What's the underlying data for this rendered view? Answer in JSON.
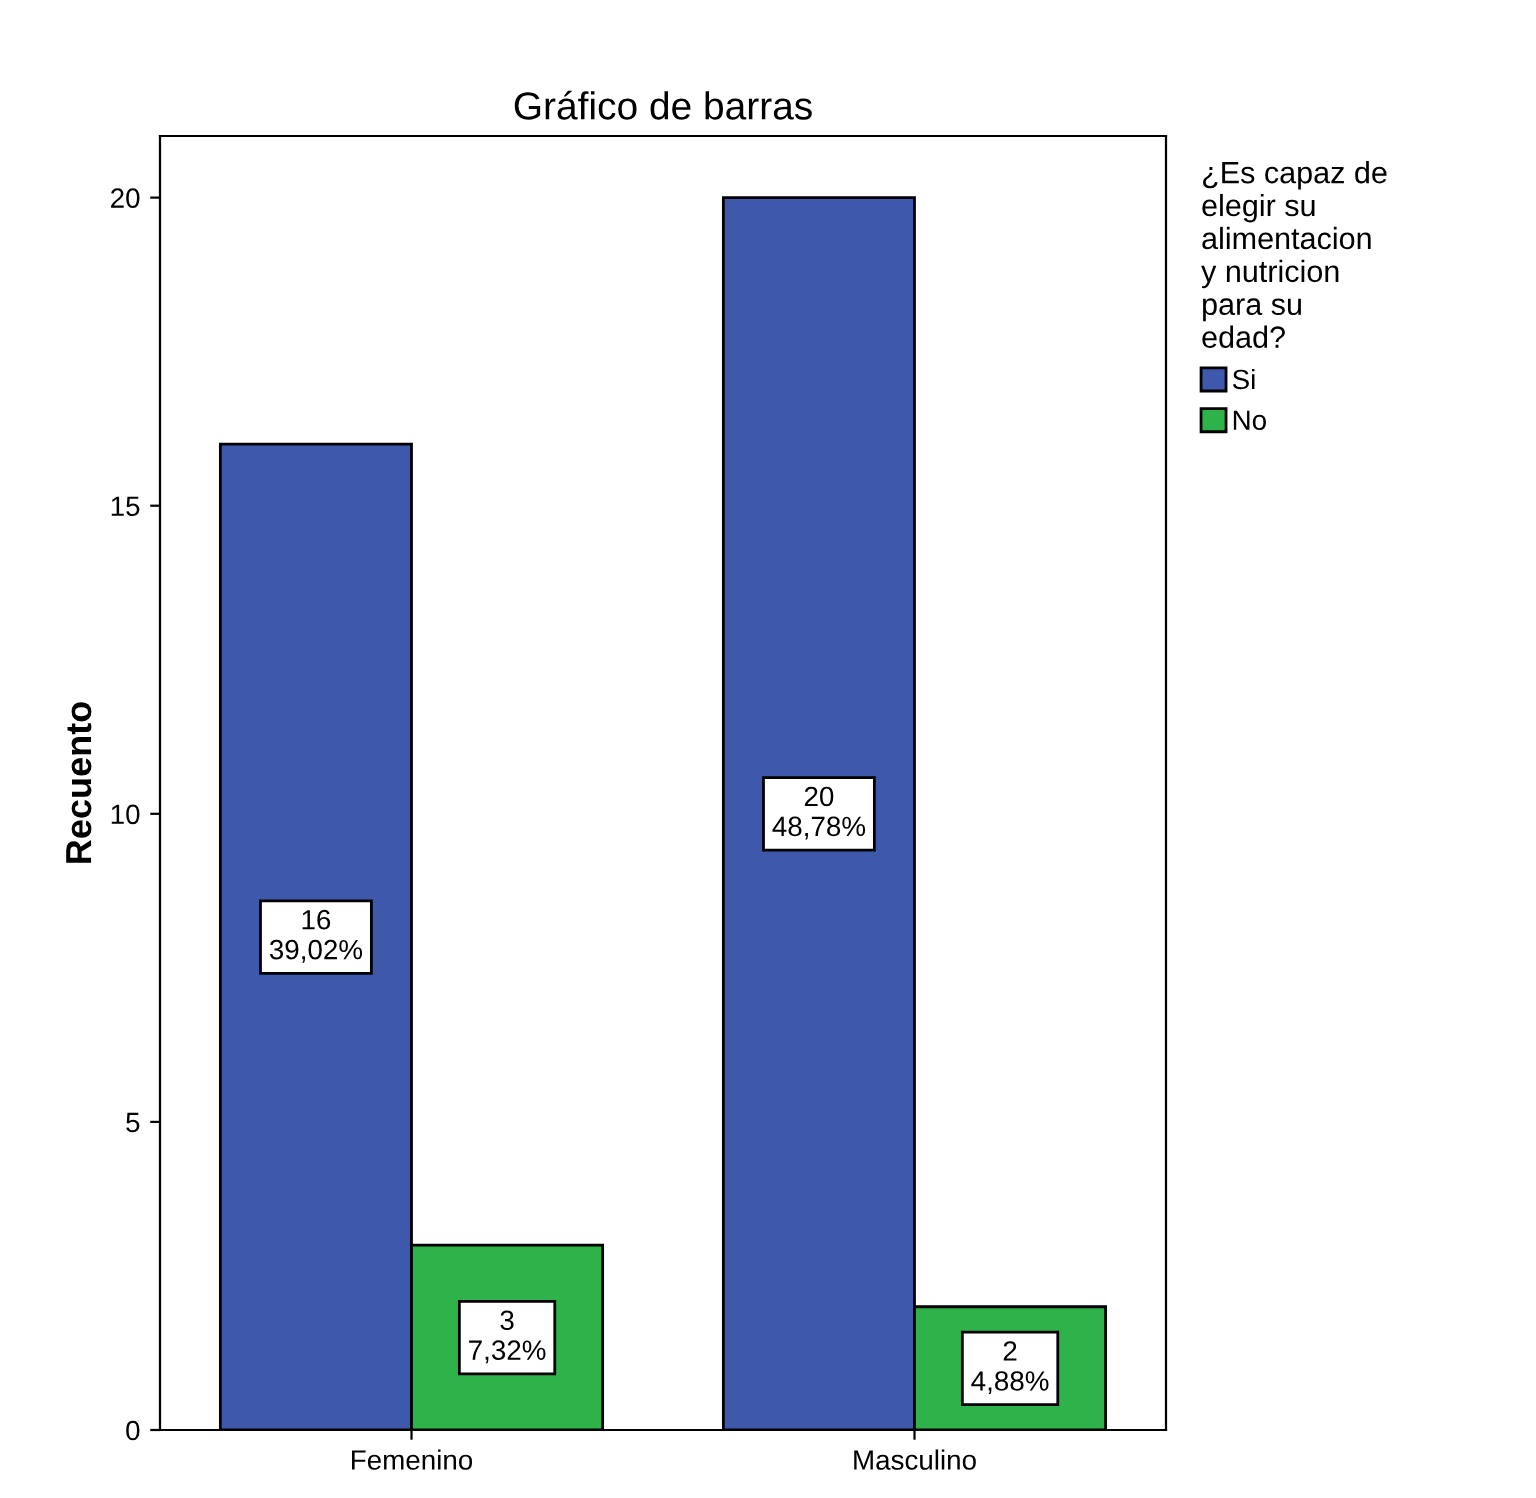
{
  "chart_data": {
    "type": "bar",
    "title": "Gráfico de barras",
    "ylabel": "Recuento",
    "legend_title": "¿Es capaz de elegir su alimentacion y nutricion para su edad?",
    "categories": [
      "Femenino",
      "Masculino"
    ],
    "series": [
      {
        "name": "Si",
        "color": "#3e58ac",
        "values": [
          16,
          20
        ],
        "value_labels": [
          "16\n39,02%",
          "20\n48,78%"
        ]
      },
      {
        "name": "No",
        "color": "#2eb34a",
        "values": [
          3,
          2
        ],
        "value_labels": [
          "3\n7,32%",
          "2\n4,88%"
        ]
      }
    ],
    "ylim": [
      0,
      21
    ],
    "yticks": [
      0,
      5,
      10,
      15,
      20
    ],
    "grid": false,
    "legend": "right"
  }
}
